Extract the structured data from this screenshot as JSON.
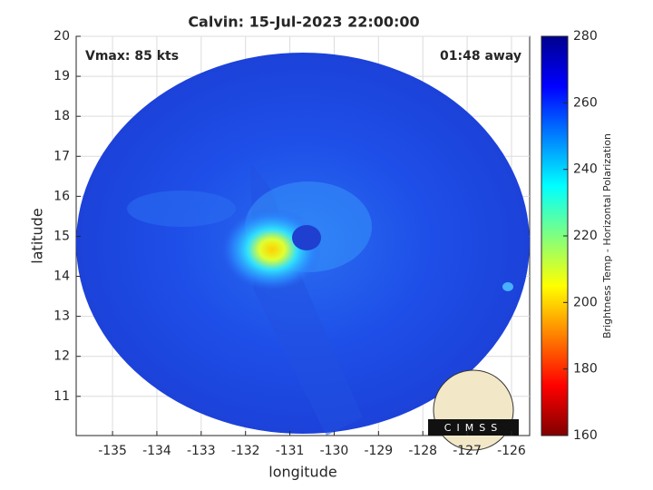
{
  "chart_data": {
    "type": "image",
    "title": "Calvin: 15-Jul-2023 22:00:00",
    "annotations": [
      "Vmax: 85 kts",
      "01:48 away"
    ],
    "x_label": "longitude",
    "y_label": "latitude",
    "xlim": [
      -135.82,
      -125.59
    ],
    "ylim": [
      10.02,
      20
    ],
    "xticks": [
      -135,
      -134,
      -133,
      -132,
      -131,
      -130,
      -129,
      -128,
      -127,
      -126
    ],
    "yticks": [
      11,
      12,
      13,
      14,
      15,
      16,
      17,
      18,
      19,
      20
    ],
    "grid": true,
    "colorbar": {
      "label": "Brightness Temp - Horizontal Polarization",
      "lim": [
        160,
        280
      ],
      "ticks": [
        160,
        180,
        200,
        220,
        240,
        260,
        280
      ],
      "colormap": [
        "#800000",
        "#ff0000",
        "#ff8000",
        "#ffff00",
        "#80ff80",
        "#00ffff",
        "#0080ff",
        "#0000ff",
        "#00008f"
      ]
    },
    "logo": "CIMSS"
  }
}
